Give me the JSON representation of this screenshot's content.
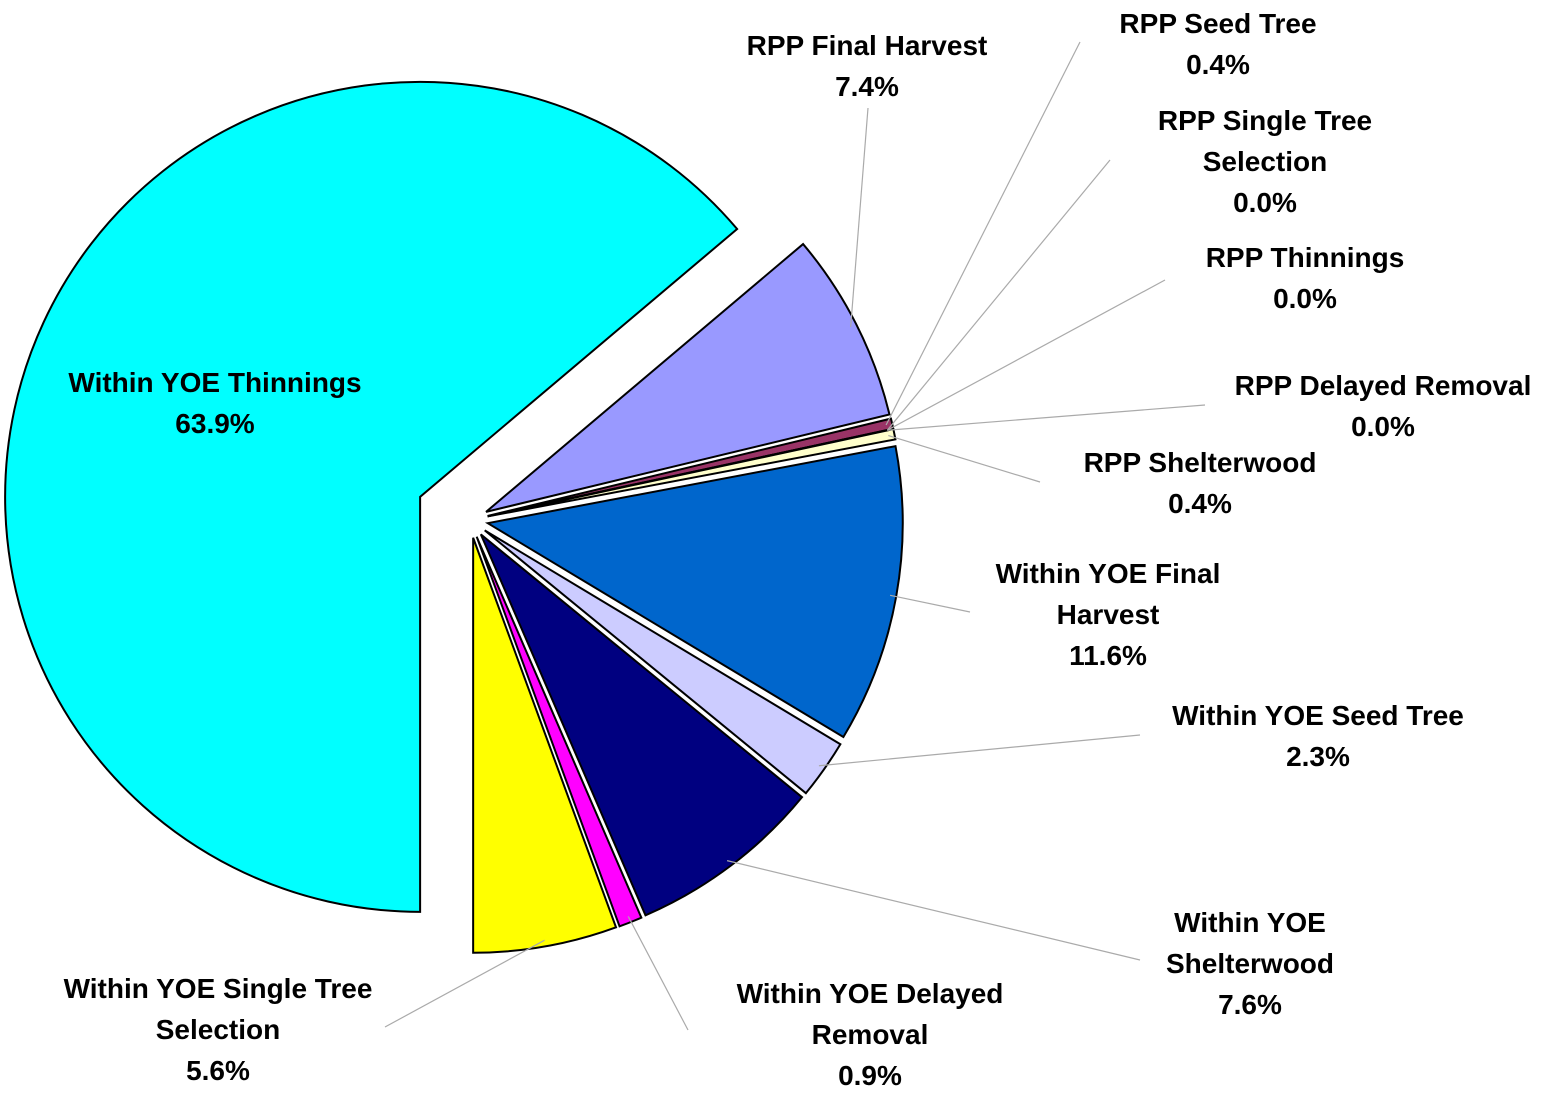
{
  "chart_data": {
    "type": "pie",
    "categories": [
      "Within YOE Thinnings",
      "RPP Final Harvest",
      "RPP Seed Tree",
      "RPP Single Tree Selection",
      "RPP Thinnings",
      "RPP Delayed Removal",
      "RPP Shelterwood",
      "Within YOE Final Harvest",
      "Within YOE Seed Tree",
      "Within YOE Shelterwood",
      "Within YOE Delayed Removal",
      "Within YOE Single Tree Selection"
    ],
    "values": [
      63.9,
      7.4,
      0.4,
      0.0,
      0.0,
      0.0,
      0.4,
      11.6,
      2.3,
      7.6,
      0.9,
      5.6
    ],
    "value_labels": [
      "63.9%",
      "7.4%",
      "0.4%",
      "0.0%",
      "0.0%",
      "0.0%",
      "0.4%",
      "11.6%",
      "2.3%",
      "7.6%",
      "0.9%",
      "5.6%"
    ],
    "colors": [
      "#00ffff",
      "#9999ff",
      "#993366",
      "#ff8080",
      "#ccffff",
      "#660066",
      "#ffffcc",
      "#0066cc",
      "#ccccff",
      "#000080",
      "#ff00ff",
      "#ffff00"
    ]
  }
}
